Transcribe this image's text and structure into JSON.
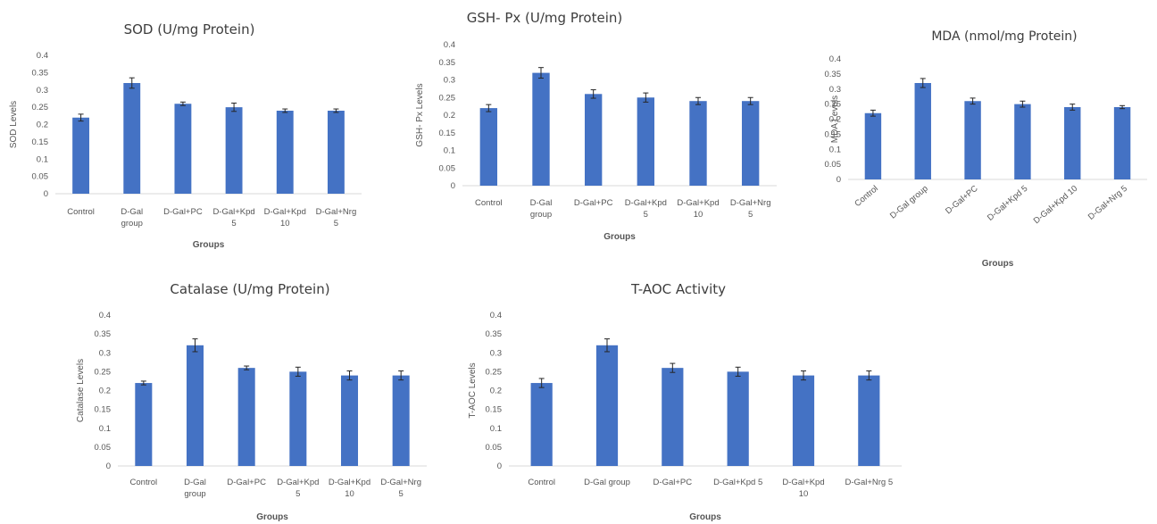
{
  "chart_data": [
    {
      "type": "bar",
      "title": "SOD (U/mg Protein)",
      "ylabel": "SOD Levels",
      "xlabel": "Groups",
      "categories": [
        [
          "Control"
        ],
        [
          "D-Gal",
          "group"
        ],
        [
          "D-Gal+PC"
        ],
        [
          "D-Gal+Kpd",
          "5"
        ],
        [
          "D-Gal+Kpd",
          "10"
        ],
        [
          "D-Gal+Nrg",
          "5"
        ]
      ],
      "values": [
        0.22,
        0.32,
        0.26,
        0.25,
        0.24,
        0.24
      ],
      "errors": [
        0.01,
        0.015,
        0.005,
        0.012,
        0.005,
        0.005
      ],
      "ylim": [
        0,
        0.4
      ],
      "yticks": [
        "0",
        "0.05",
        "0.1",
        "0.15",
        "0.2",
        "0.25",
        "0.3",
        "0.35",
        "0.4"
      ],
      "color": "#4472c4"
    },
    {
      "type": "bar",
      "title": "GSH- Px (U/mg Protein)",
      "ylabel": "GSH- Px  Levels",
      "xlabel": "Groups",
      "categories": [
        [
          "Control"
        ],
        [
          "D-Gal",
          "group"
        ],
        [
          "D-Gal+PC"
        ],
        [
          "D-Gal+Kpd",
          "5"
        ],
        [
          "D-Gal+Kpd",
          "10"
        ],
        [
          "D-Gal+Nrg",
          "5"
        ]
      ],
      "values": [
        0.22,
        0.32,
        0.26,
        0.25,
        0.24,
        0.24
      ],
      "errors": [
        0.01,
        0.015,
        0.012,
        0.013,
        0.01,
        0.01
      ],
      "ylim": [
        0,
        0.4
      ],
      "yticks": [
        "0",
        "0.05",
        "0.1",
        "0.15",
        "0.2",
        "0.25",
        "0.3",
        "0.35",
        "0.4"
      ],
      "color": "#4472c4"
    },
    {
      "type": "bar",
      "title": "MDA (nmol/mg Protein)",
      "ylabel": "MDA  Levels",
      "xlabel": "Groups",
      "categories": [
        [
          "Control"
        ],
        [
          "D-Gal group"
        ],
        [
          "D-Gal+PC"
        ],
        [
          "D-Gal+Kpd 5"
        ],
        [
          "D-Gal+Kpd 10"
        ],
        [
          "D-Gal+Nrg 5"
        ]
      ],
      "values": [
        0.22,
        0.32,
        0.26,
        0.25,
        0.24,
        0.24
      ],
      "errors": [
        0.01,
        0.015,
        0.01,
        0.01,
        0.01,
        0.005
      ],
      "ylim": [
        0,
        0.4
      ],
      "yticks": [
        "0",
        "0.05",
        "0.1",
        "0.15",
        "0.2",
        "0.25",
        "0.3",
        "0.35",
        "0.4"
      ],
      "color": "#4472c4"
    },
    {
      "type": "bar",
      "title": "Catalase (U/mg Protein)",
      "ylabel": "Catalase  Levels",
      "xlabel": "Groups",
      "categories": [
        [
          "Control"
        ],
        [
          "D-Gal",
          "group"
        ],
        [
          "D-Gal+PC"
        ],
        [
          "D-Gal+Kpd",
          "5"
        ],
        [
          "D-Gal+Kpd",
          "10"
        ],
        [
          "D-Gal+Nrg",
          "5"
        ]
      ],
      "values": [
        0.22,
        0.32,
        0.26,
        0.25,
        0.24,
        0.24
      ],
      "errors": [
        0.005,
        0.017,
        0.005,
        0.012,
        0.012,
        0.012
      ],
      "ylim": [
        0,
        0.4
      ],
      "yticks": [
        "0",
        "0.05",
        "0.1",
        "0.15",
        "0.2",
        "0.25",
        "0.3",
        "0.35",
        "0.4"
      ],
      "color": "#4472c4"
    },
    {
      "type": "bar",
      "title": "T-AOC Activity",
      "ylabel": "T-AOC  Levels",
      "xlabel": "Groups",
      "categories": [
        [
          "Control"
        ],
        [
          "D-Gal group"
        ],
        [
          "D-Gal+PC"
        ],
        [
          "D-Gal+Kpd 5"
        ],
        [
          "D-Gal+Kpd",
          "10"
        ],
        [
          "D-Gal+Nrg 5"
        ]
      ],
      "values": [
        0.22,
        0.32,
        0.26,
        0.25,
        0.24,
        0.24
      ],
      "errors": [
        0.012,
        0.017,
        0.012,
        0.012,
        0.012,
        0.012
      ],
      "ylim": [
        0,
        0.4
      ],
      "yticks": [
        "0",
        "0.05",
        "0.1",
        "0.15",
        "0.2",
        "0.25",
        "0.3",
        "0.35",
        "0.4"
      ],
      "color": "#4472c4"
    }
  ]
}
